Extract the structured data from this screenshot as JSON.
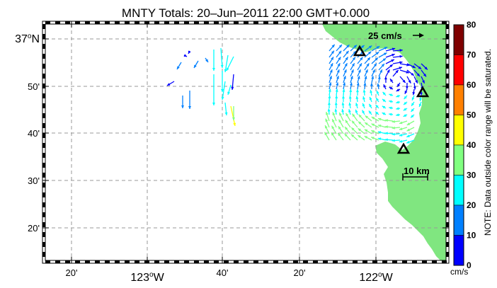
{
  "title": "MNTY Totals: 20–Jun–2011 22:00 GMT+0.000",
  "x_ticks": [
    {
      "label": "20'",
      "major": false
    },
    {
      "label": "123",
      "major": true,
      "hemi": "W"
    },
    {
      "label": "40'",
      "major": false
    },
    {
      "label": "20'",
      "major": false
    },
    {
      "label": "122",
      "major": true,
      "hemi": "W"
    }
  ],
  "y_ticks": [
    {
      "label": "37",
      "major": true,
      "hemi": "N"
    },
    {
      "label": "50'",
      "major": false
    },
    {
      "label": "40'",
      "major": false
    },
    {
      "label": "30'",
      "major": false
    },
    {
      "label": "20'",
      "major": false
    }
  ],
  "degree_symbol": "o",
  "reference_vector_label": "25 cm/s",
  "scale_bar_label": "10 km",
  "colorbar": {
    "ticks": [
      "80",
      "70",
      "60",
      "50",
      "40",
      "30",
      "20",
      "10",
      "0"
    ],
    "unit": "cm/s",
    "note": "NOTE: Data outside color range will be saturated.",
    "colors": [
      "#7f0000",
      "#ff0000",
      "#ff8000",
      "#ffff00",
      "#80ff80",
      "#00ffff",
      "#0080ff",
      "#0000ff"
    ]
  },
  "colors": {
    "land": "#80e680",
    "grid": "#999999"
  }
}
